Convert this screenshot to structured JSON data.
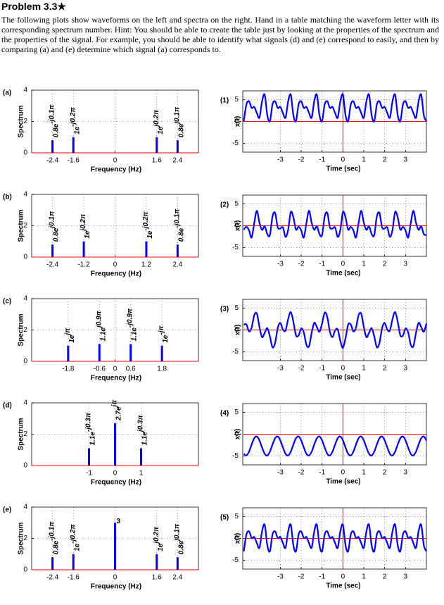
{
  "header": {
    "title": "Problem 3.3★"
  },
  "body": "The following plots show waveforms on the left and spectra on the right. Hand in a table matching the waveform letter with its corresponding spectrum number. Hint: You should be able to create the table just by looking at the properties of the spectrum and the properties of the signal. For example, you should be able to identify what signals (d) and (e) correspond to easily, and then by comparing (a) and (e) determine which signal (a) corresponds to.",
  "chart_data": [
    {
      "type": "stem",
      "panel": "(a)",
      "xlabel": "Frequency (Hz)",
      "ylabel": "Spectrum",
      "x": [
        -2.4,
        -1.6,
        1.6,
        2.4
      ],
      "values": [
        0.8,
        1,
        1,
        0.8
      ],
      "value_labels": [
        "0.8e-j0.1π",
        "1e-j0.2π",
        "1ej0.2π",
        "0.8ej0.1π"
      ],
      "xlim": [
        -3.2,
        3.2
      ],
      "ylim": [
        0,
        4
      ],
      "xticks": [
        -2.4,
        -1.6,
        0,
        1.6,
        2.4
      ],
      "yticks": [
        0,
        2,
        4
      ],
      "grid": true,
      "color": "#0000ff",
      "zero_line_color": "#ff0000"
    },
    {
      "type": "line",
      "panel": "(1)",
      "xlabel": "Time (sec)",
      "ylabel": "x(t)",
      "x": [
        -4.75,
        -4.625,
        -4.5,
        -4.375,
        -4.25,
        -4.125,
        -4,
        -3.875,
        -3.75,
        -3.625,
        -3.5,
        -3.375,
        -3.25,
        -3.125,
        -3,
        -2.875,
        -2.75,
        -2.625,
        -2.5,
        -2.375,
        -2.25,
        -2.125,
        -2,
        -1.875,
        -1.75,
        -1.625,
        -1.5,
        -1.375,
        -1.25,
        -1.125,
        -1,
        -0.875,
        -0.75,
        -0.625,
        -0.5,
        -0.375,
        -0.25,
        -0.125,
        0,
        0.125,
        0.25,
        0.375,
        0.5,
        0.625,
        0.75,
        0.875,
        1,
        1.125,
        1.25,
        1.375,
        1.5,
        1.625,
        1.75,
        1.875,
        2,
        2.125,
        2.25,
        2.375,
        2.5,
        2.625,
        2.75,
        2.875,
        3,
        3.125,
        3.25,
        3.375,
        3.5,
        3.625,
        3.75,
        3.875,
        4
      ],
      "values": [
        0.06,
        3.9,
        4.62,
        3.1,
        3.32,
        1.94,
        0.86,
        4.62,
        6.14,
        1.44,
        0.06,
        3.9,
        4.62,
        3.1,
        3.32,
        1.94,
        0.86,
        4.62,
        6.14,
        1.44,
        0.06,
        3.9,
        4.62,
        3.1,
        3.32,
        1.94,
        0.86,
        4.62,
        6.14,
        1.44,
        0.06,
        3.9,
        4.62,
        3.1,
        3.32,
        1.94,
        0.86,
        4.62,
        6.14,
        1.44,
        0.06,
        3.9,
        4.62,
        3.1,
        3.32,
        1.94,
        0.86,
        4.62,
        6.14,
        1.44,
        0.06,
        3.9,
        4.62,
        3.1,
        3.32,
        1.94,
        0.86,
        4.62,
        6.14,
        1.44,
        0.06,
        3.9,
        4.62,
        3.1,
        3.32,
        1.94,
        0.86,
        4.62,
        6.14,
        1.44,
        0.06
      ],
      "xlim": [
        -4.8,
        4
      ],
      "ylim": [
        -7,
        7
      ],
      "xticks": [
        -3,
        -2,
        -1,
        0,
        1,
        2,
        3
      ],
      "yticks": [
        -5,
        0,
        5
      ],
      "grid": true,
      "color": "#0000ff",
      "zero_line_color": "#ff0000"
    },
    {
      "type": "stem",
      "panel": "(b)",
      "xlabel": "Frequency (Hz)",
      "ylabel": "Spectrum",
      "x": [
        -2.4,
        -1.2,
        1.2,
        2.4
      ],
      "values": [
        0.8,
        1,
        1,
        0.8
      ],
      "value_labels": [
        "0.8ej0.1π",
        "1ej0.2π",
        "1e-j0.2π",
        "0.8e-j0.1π"
      ],
      "xlim": [
        -3.2,
        3.2
      ],
      "ylim": [
        0,
        4
      ],
      "xticks": [
        -2.4,
        -1.2,
        0,
        1.2,
        2.4
      ],
      "yticks": [
        0,
        2,
        4
      ],
      "grid": true,
      "color": "#0000ff",
      "zero_line_color": "#ff0000"
    },
    {
      "type": "line",
      "panel": "(2)",
      "xlabel": "Time (sec)",
      "ylabel": "x(t)",
      "x": [
        -4.75,
        -4.625,
        -4.5,
        -4.375,
        -4.25,
        -4.125,
        -4,
        -3.875,
        -3.75,
        -3.625,
        -3.5,
        -3.375,
        -3.25,
        -3.125,
        -3,
        -2.875,
        -2.75,
        -2.625,
        -2.5,
        -2.375,
        -2.25,
        -2.125,
        -2,
        -1.875,
        -1.75,
        -1.625,
        -1.5,
        -1.375,
        -1.25,
        -1.125,
        -1,
        -0.875,
        -0.75,
        -0.625,
        -0.5,
        -0.375,
        -0.25,
        -0.125,
        0,
        0.125,
        0.25,
        0.375,
        0.5,
        0.625,
        0.75,
        0.875,
        1,
        1.125,
        1.25,
        1.375,
        1.5,
        1.625,
        1.75,
        1.875,
        2,
        2.125,
        2.25,
        2.375,
        2.5,
        2.625,
        2.75,
        2.875,
        3,
        3.125,
        3.25,
        3.375,
        3.5,
        3.625,
        3.75,
        3.875,
        4
      ],
      "values": [
        -0.9,
        -0.24,
        -1.06,
        -2.7,
        0.62,
        3.42,
        0.68,
        -0.94,
        -0.1,
        -1.9,
        -2.14,
        2.12,
        2.94,
        -0.35,
        -0.62,
        -0.38,
        -2.56,
        -0.94,
        3.14,
        1.9,
        -0.9,
        -0.24,
        -1.06,
        -2.7,
        0.62,
        3.42,
        0.68,
        -0.94,
        -0.1,
        -1.9,
        -2.14,
        2.12,
        2.94,
        -0.35,
        -0.62,
        -0.38,
        -2.56,
        -0.94,
        3.14,
        1.9,
        -0.9,
        -0.24,
        -1.06,
        -2.7,
        0.62,
        3.42,
        0.68,
        -0.94,
        -0.1,
        -1.9,
        -2.14,
        2.12,
        2.94,
        -0.35,
        -0.62,
        -0.38,
        -2.56,
        -0.94,
        3.14,
        1.9,
        -0.9,
        -0.24,
        -1.06,
        -2.7,
        0.62,
        3.42,
        0.68,
        -0.94,
        -0.1,
        -1.9,
        -2.14
      ],
      "xlim": [
        -4.8,
        4
      ],
      "ylim": [
        -7,
        7
      ],
      "xticks": [
        -3,
        -2,
        -1,
        0,
        1,
        2,
        3
      ],
      "yticks": [
        -5,
        0,
        5
      ],
      "grid": true,
      "color": "#0000ff",
      "zero_line_color": "#ff0000"
    },
    {
      "type": "stem",
      "panel": "(c)",
      "xlabel": "Frequency (Hz)",
      "ylabel": "Spectrum",
      "x": [
        -1.8,
        -0.6,
        0.6,
        1.8
      ],
      "values": [
        1,
        1.1,
        1.1,
        1
      ],
      "value_labels": [
        "1ejπ",
        "1.1ej0.9π",
        "1.1e-j0.9π",
        "1e-jπ"
      ],
      "xlim": [
        -3.2,
        3.2
      ],
      "ylim": [
        0,
        4
      ],
      "xticks": [
        -1.8,
        -0.6,
        0,
        0.6,
        1.8
      ],
      "yticks": [
        0,
        2,
        4
      ],
      "grid": true,
      "color": "#0000ff",
      "zero_line_color": "#ff0000"
    },
    {
      "type": "line",
      "panel": "(3)",
      "xlabel": "Time (sec)",
      "ylabel": "x(t)",
      "x": [
        -4.75,
        -4.625,
        -4.5,
        -4.375,
        -4.25,
        -4.125,
        -4,
        -3.875,
        -3.75,
        -3.625,
        -3.5,
        -3.375,
        -3.25,
        -3.125,
        -3,
        -2.875,
        -2.75,
        -2.625,
        -2.5,
        -2.375,
        -2.25,
        -2.125,
        -2,
        -1.875,
        -1.75,
        -1.625,
        -1.5,
        -1.375,
        -1.25,
        -1.125,
        -1,
        -0.875,
        -0.75,
        -0.625,
        -0.5,
        -0.375,
        -0.25,
        -0.125,
        0,
        0.125,
        0.25,
        0.375,
        0.5,
        0.625,
        0.75,
        0.875,
        1,
        1.125,
        1.25,
        1.375,
        1.5,
        1.625,
        1.75,
        1.875,
        2,
        2.125,
        2.25,
        2.375,
        2.5,
        2.625,
        2.75,
        2.875,
        3,
        3.125,
        3.25,
        3.375,
        3.5,
        3.625,
        3.75,
        3.875,
        4
      ],
      "values": [
        1.22,
        1.25,
        -0.33,
        0.55,
        3.38,
        3.74,
        0.68,
        -1.63,
        -0.68,
        0.42,
        -1.47,
        -3.96,
        -2.96,
        0.42,
        1.62,
        0.09,
        -0.12,
        2.49,
        4.09,
        1.87,
        -1.22,
        -1.25,
        0.33,
        -0.55,
        -3.38,
        -3.74,
        -0.68,
        1.63,
        0.68,
        -0.42,
        1.47,
        3.96,
        2.96,
        -0.42,
        -1.62,
        -0.09,
        0.12,
        -2.49,
        -4.09,
        -1.87,
        1.22,
        1.25,
        -0.33,
        0.55,
        3.38,
        3.74,
        0.68,
        -1.63,
        -0.68,
        0.42,
        -1.47,
        -3.96,
        -2.96,
        0.42,
        1.62,
        0.09,
        -0.12,
        2.49,
        4.09,
        1.87,
        -1.22,
        -1.25,
        0.33,
        -0.55,
        -3.38,
        -3.74,
        -0.68,
        1.63,
        0.68,
        -0.42,
        1.47
      ],
      "xlim": [
        -4.8,
        4
      ],
      "ylim": [
        -7,
        7
      ],
      "xticks": [
        -3,
        -2,
        -1,
        0,
        1,
        2,
        3
      ],
      "yticks": [
        -5,
        0,
        5
      ],
      "grid": true,
      "color": "#0000ff",
      "zero_line_color": "#ff0000"
    },
    {
      "type": "stem",
      "panel": "(d)",
      "xlabel": "Frequency (Hz)",
      "ylabel": "Spectrum",
      "x": [
        -1,
        0,
        1
      ],
      "values": [
        1.1,
        2.7,
        1.1
      ],
      "value_labels": [
        "1.1e-j0.3π",
        "2.7ejπ",
        "1.1ej0.3π"
      ],
      "xlim": [
        -3.2,
        3.2
      ],
      "ylim": [
        0,
        4
      ],
      "xticks": [
        -1,
        0,
        1
      ],
      "yticks": [
        0,
        2,
        4
      ],
      "grid": true,
      "color": "#0000ff",
      "zero_line_color": "#ff0000"
    },
    {
      "type": "line",
      "panel": "(4)",
      "xlabel": "Time (sec)",
      "ylabel": "x(t)",
      "x": [
        -4.75,
        -4.625,
        -4.5,
        -4.375,
        -4.25,
        -4.125,
        -4,
        -3.875,
        -3.75,
        -3.625,
        -3.5,
        -3.375,
        -3.25,
        -3.125,
        -3,
        -2.875,
        -2.75,
        -2.625,
        -2.5,
        -2.375,
        -2.25,
        -2.125,
        -2,
        -1.875,
        -1.75,
        -1.625,
        -1.5,
        -1.375,
        -1.25,
        -1.125,
        -1,
        -0.875,
        -0.75,
        -0.625,
        -0.5,
        -0.375,
        -0.25,
        -0.125,
        0,
        0.125,
        0.25,
        0.375,
        0.5,
        0.625,
        0.75,
        0.875,
        1,
        1.125,
        1.25,
        1.375,
        1.5,
        1.625,
        1.75,
        1.875,
        2,
        2.125,
        2.25,
        2.375,
        2.5,
        2.625,
        2.75,
        2.875,
        3,
        3.125,
        3.25,
        3.375,
        3.5,
        3.625,
        3.75,
        3.875,
        4
      ],
      "values": [
        -4.48,
        -4.87,
        -3.99,
        -2.36,
        -0.92,
        -0.53,
        -1.41,
        -3.04,
        -4.48,
        -4.87,
        -3.99,
        -2.36,
        -0.92,
        -0.53,
        -1.41,
        -3.04,
        -4.48,
        -4.87,
        -3.99,
        -2.36,
        -0.92,
        -0.53,
        -1.41,
        -3.04,
        -4.48,
        -4.87,
        -3.99,
        -2.36,
        -0.92,
        -0.53,
        -1.41,
        -3.04,
        -4.48,
        -4.87,
        -3.99,
        -2.36,
        -0.92,
        -0.53,
        -1.41,
        -3.04,
        -4.48,
        -4.87,
        -3.99,
        -2.36,
        -0.92,
        -0.53,
        -1.41,
        -3.04,
        -4.48,
        -4.87,
        -3.99,
        -2.36,
        -0.92,
        -0.53,
        -1.41,
        -3.04,
        -4.48,
        -4.87,
        -3.99,
        -2.36,
        -0.92,
        -0.53,
        -1.41,
        -3.04,
        -4.48,
        -4.87,
        -3.99,
        -2.36,
        -0.92,
        -0.53,
        -1.41
      ],
      "xlim": [
        -4.8,
        4
      ],
      "ylim": [
        -7,
        7
      ],
      "xticks": [
        -3,
        -2,
        -1,
        0,
        1,
        2,
        3
      ],
      "yticks": [
        -5,
        0,
        5
      ],
      "grid": true,
      "color": "#0000ff",
      "zero_line_color": "#ff0000"
    },
    {
      "type": "stem",
      "panel": "(e)",
      "xlabel": "Frequency (Hz)",
      "ylabel": "Spectrum",
      "x": [
        -2.4,
        -1.6,
        0,
        1.6,
        2.4
      ],
      "values": [
        0.8,
        1,
        3,
        1,
        0.8
      ],
      "value_labels": [
        "0.8e-j0.1π",
        "1e-j0.2π",
        "3",
        "1ej0.2π",
        "0.8ej0.1π"
      ],
      "xlim": [
        -3.2,
        3.2
      ],
      "ylim": [
        0,
        4
      ],
      "xticks": [
        -2.4,
        -1.6,
        0,
        1.6,
        2.4
      ],
      "yticks": [
        0,
        2,
        4
      ],
      "grid": true,
      "color": "#0000ff",
      "zero_line_color": "#ff0000"
    },
    {
      "type": "line",
      "panel": "(5)",
      "xlabel": "Time (sec)",
      "ylabel": "x(t)",
      "x": [
        -4.75,
        -4.625,
        -4.5,
        -4.375,
        -4.25,
        -4.125,
        -4,
        -3.875,
        -3.75,
        -3.625,
        -3.5,
        -3.375,
        -3.25,
        -3.125,
        -3,
        -2.875,
        -2.75,
        -2.625,
        -2.5,
        -2.375,
        -2.25,
        -2.125,
        -2,
        -1.875,
        -1.75,
        -1.625,
        -1.5,
        -1.375,
        -1.25,
        -1.125,
        -1,
        -0.875,
        -0.75,
        -0.625,
        -0.5,
        -0.375,
        -0.25,
        -0.125,
        0,
        0.125,
        0.25,
        0.375,
        0.5,
        0.625,
        0.75,
        0.875,
        1,
        1.125,
        1.25,
        1.375,
        1.5,
        1.625,
        1.75,
        1.875,
        2,
        2.125,
        2.25,
        2.375,
        2.5,
        2.625,
        2.75,
        2.875,
        3,
        3.125,
        3.25,
        3.375,
        3.5,
        3.625,
        3.75,
        3.875,
        4
      ],
      "values": [
        -2.94,
        0.9,
        1.62,
        0.1,
        0.32,
        -1.06,
        -2.14,
        1.62,
        3.14,
        -1.56,
        -2.94,
        0.9,
        1.62,
        0.1,
        0.32,
        -1.06,
        -2.14,
        1.62,
        3.14,
        -1.56,
        -2.94,
        0.9,
        1.62,
        0.1,
        0.32,
        -1.06,
        -2.14,
        1.62,
        3.14,
        -1.56,
        -2.94,
        0.9,
        1.62,
        0.1,
        0.32,
        -1.06,
        -2.14,
        1.62,
        3.14,
        -1.56,
        -2.94,
        0.9,
        1.62,
        0.1,
        0.32,
        -1.06,
        -2.14,
        1.62,
        3.14,
        -1.56,
        -2.94,
        0.9,
        1.62,
        0.1,
        0.32,
        -1.06,
        -2.14,
        1.62,
        3.14,
        -1.56,
        -2.94,
        0.9,
        1.62,
        0.1,
        0.32,
        -1.06,
        -2.14,
        1.62,
        3.14,
        -1.56,
        -2.94
      ],
      "xlim": [
        -4.8,
        4
      ],
      "ylim": [
        -7,
        7
      ],
      "xticks": [
        -3,
        -2,
        -1,
        0,
        1,
        2,
        3
      ],
      "yticks": [
        -5,
        0,
        5
      ],
      "grid": true,
      "color": "#0000ff",
      "zero_line_color": "#ff0000"
    }
  ]
}
